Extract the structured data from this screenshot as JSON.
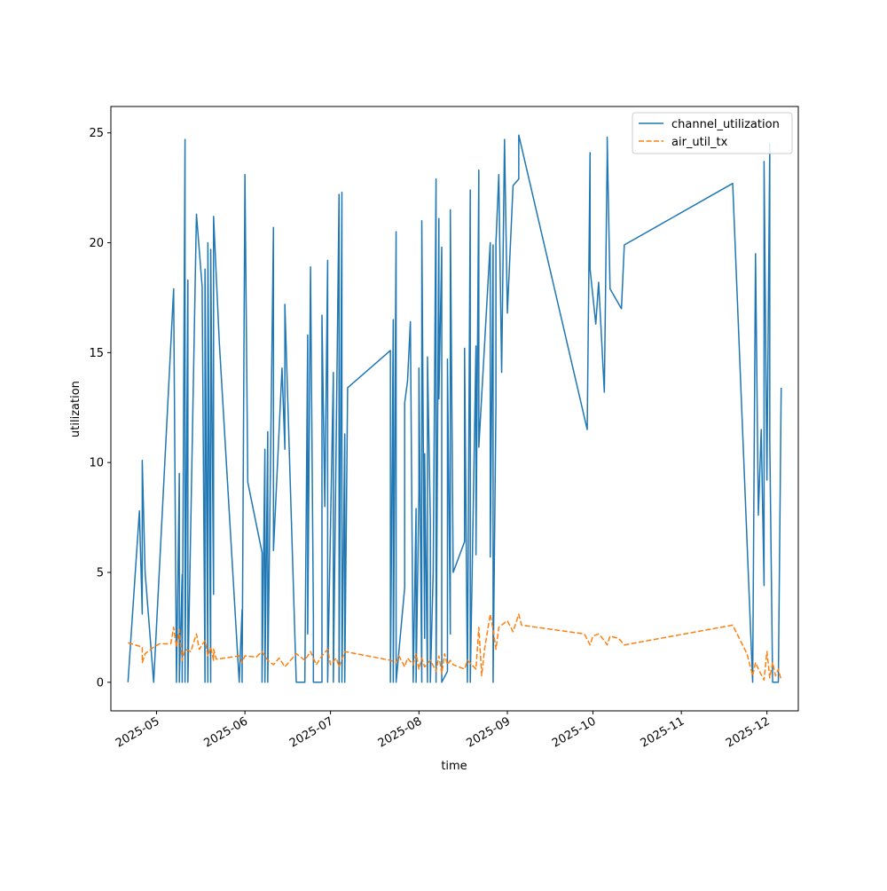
{
  "chart_data": {
    "type": "line",
    "xlabel": "time",
    "ylabel": "utilization",
    "x_range": [
      "2025-04-15",
      "2025-12-12"
    ],
    "ylim": [
      -1.3,
      26.2
    ],
    "x_ticks": [
      "2025-05-01",
      "2025-06-01",
      "2025-07-01",
      "2025-08-01",
      "2025-09-01",
      "2025-10-01",
      "2025-11-01",
      "2025-12-01"
    ],
    "x_tick_labels": [
      "2025-05",
      "2025-06",
      "2025-07",
      "2025-08",
      "2025-09",
      "2025-10",
      "2025-11",
      "2025-12"
    ],
    "y_ticks": [
      0,
      5,
      10,
      15,
      20,
      25
    ],
    "y_tick_labels": [
      "0",
      "5",
      "10",
      "15",
      "20",
      "25"
    ],
    "grid": false,
    "legend_position": "top-right",
    "series": [
      {
        "name": "channel_utilization",
        "color": "#1f77b4",
        "style": "solid",
        "points": [
          [
            "2025-04-21",
            0.0
          ],
          [
            "2025-04-25",
            7.8
          ],
          [
            "2025-04-26",
            3.1
          ],
          [
            "2025-04-26",
            10.1
          ],
          [
            "2025-04-27",
            5.0
          ],
          [
            "2025-04-30",
            0.0
          ],
          [
            "2025-05-07",
            17.9
          ],
          [
            "2025-05-08",
            0.0
          ],
          [
            "2025-05-09",
            9.5
          ],
          [
            "2025-05-09",
            0.0
          ],
          [
            "2025-05-10",
            4.9
          ],
          [
            "2025-05-10",
            0.0
          ],
          [
            "2025-05-11",
            24.7
          ],
          [
            "2025-05-11",
            0.0
          ],
          [
            "2025-05-12",
            18.3
          ],
          [
            "2025-05-12",
            0.0
          ],
          [
            "2025-05-15",
            21.3
          ],
          [
            "2025-05-17",
            18.0
          ],
          [
            "2025-05-18",
            0.0
          ],
          [
            "2025-05-18",
            18.8
          ],
          [
            "2025-05-19",
            0.0
          ],
          [
            "2025-05-19",
            20.0
          ],
          [
            "2025-05-20",
            0.0
          ],
          [
            "2025-05-20",
            19.7
          ],
          [
            "2025-05-21",
            4.0
          ],
          [
            "2025-05-21",
            21.2
          ],
          [
            "2025-05-23",
            15.5
          ],
          [
            "2025-05-30",
            0.0
          ],
          [
            "2025-05-31",
            3.3
          ],
          [
            "2025-05-31",
            0.0
          ],
          [
            "2025-06-01",
            23.1
          ],
          [
            "2025-06-02",
            9.1
          ],
          [
            "2025-06-07",
            5.9
          ],
          [
            "2025-06-07",
            0.0
          ],
          [
            "2025-06-08",
            10.6
          ],
          [
            "2025-06-08",
            0.0
          ],
          [
            "2025-06-09",
            11.4
          ],
          [
            "2025-06-09",
            0.0
          ],
          [
            "2025-06-11",
            20.7
          ],
          [
            "2025-06-11",
            6.0
          ],
          [
            "2025-06-14",
            14.3
          ],
          [
            "2025-06-15",
            10.6
          ],
          [
            "2025-06-15",
            17.2
          ],
          [
            "2025-06-19",
            0.0
          ],
          [
            "2025-06-22",
            0.0
          ],
          [
            "2025-06-23",
            15.8
          ],
          [
            "2025-06-23",
            2.2
          ],
          [
            "2025-06-24",
            18.9
          ],
          [
            "2025-06-25",
            3.0
          ],
          [
            "2025-06-25",
            0.0
          ],
          [
            "2025-06-28",
            0.0
          ],
          [
            "2025-06-28",
            16.7
          ],
          [
            "2025-06-29",
            8.0
          ],
          [
            "2025-06-30",
            19.2
          ],
          [
            "2025-06-30",
            0.0
          ],
          [
            "2025-07-02",
            14.1
          ],
          [
            "2025-07-02",
            0.0
          ],
          [
            "2025-07-04",
            22.2
          ],
          [
            "2025-07-04",
            0.0
          ],
          [
            "2025-07-05",
            22.3
          ],
          [
            "2025-07-05",
            0.0
          ],
          [
            "2025-07-06",
            11.3
          ],
          [
            "2025-07-06",
            0.0
          ],
          [
            "2025-07-07",
            13.4
          ],
          [
            "2025-07-22",
            15.1
          ],
          [
            "2025-07-22",
            0.0
          ],
          [
            "2025-07-23",
            16.5
          ],
          [
            "2025-07-23",
            0.0
          ],
          [
            "2025-07-24",
            20.5
          ],
          [
            "2025-07-24",
            0.0
          ],
          [
            "2025-07-27",
            4.3
          ],
          [
            "2025-07-27",
            12.7
          ],
          [
            "2025-07-28",
            13.7
          ],
          [
            "2025-07-29",
            16.4
          ],
          [
            "2025-07-30",
            0.0
          ],
          [
            "2025-07-31",
            7.9
          ],
          [
            "2025-07-31",
            0.0
          ],
          [
            "2025-08-01",
            8.7
          ],
          [
            "2025-08-01",
            14.3
          ],
          [
            "2025-08-02",
            0.0
          ],
          [
            "2025-08-02",
            21.0
          ],
          [
            "2025-08-03",
            2.0
          ],
          [
            "2025-08-03",
            10.4
          ],
          [
            "2025-08-04",
            0.0
          ],
          [
            "2025-08-04",
            14.8
          ],
          [
            "2025-08-05",
            7.3
          ],
          [
            "2025-08-05",
            0.0
          ],
          [
            "2025-08-06",
            5.0
          ],
          [
            "2025-08-07",
            22.9
          ],
          [
            "2025-08-07",
            0.0
          ],
          [
            "2025-08-08",
            21.1
          ],
          [
            "2025-08-08",
            12.9
          ],
          [
            "2025-08-09",
            19.8
          ],
          [
            "2025-08-09",
            0.0
          ],
          [
            "2025-08-11",
            0.5
          ],
          [
            "2025-08-11",
            14.7
          ],
          [
            "2025-08-12",
            2.2
          ],
          [
            "2025-08-12",
            21.5
          ],
          [
            "2025-08-13",
            5.0
          ],
          [
            "2025-08-17",
            6.4
          ],
          [
            "2025-08-17",
            15.2
          ],
          [
            "2025-08-18",
            0.0
          ],
          [
            "2025-08-19",
            22.4
          ],
          [
            "2025-08-19",
            0.0
          ],
          [
            "2025-08-21",
            15.3
          ],
          [
            "2025-08-21",
            5.8
          ],
          [
            "2025-08-22",
            23.3
          ],
          [
            "2025-08-22",
            10.7
          ],
          [
            "2025-08-26",
            20.0
          ],
          [
            "2025-08-26",
            5.7
          ],
          [
            "2025-08-27",
            19.9
          ],
          [
            "2025-08-27",
            0.0
          ],
          [
            "2025-08-28",
            12.6
          ],
          [
            "2025-08-28",
            20.0
          ],
          [
            "2025-08-29",
            23.1
          ],
          [
            "2025-08-30",
            14.1
          ],
          [
            "2025-08-31",
            24.7
          ],
          [
            "2025-09-01",
            16.8
          ],
          [
            "2025-09-03",
            22.6
          ],
          [
            "2025-09-05",
            22.9
          ],
          [
            "2025-09-05",
            24.9
          ],
          [
            "2025-09-29",
            11.5
          ],
          [
            "2025-09-30",
            24.1
          ],
          [
            "2025-09-30",
            18.8
          ],
          [
            "2025-10-02",
            16.3
          ],
          [
            "2025-10-03",
            18.2
          ],
          [
            "2025-10-05",
            13.2
          ],
          [
            "2025-10-06",
            24.0
          ],
          [
            "2025-10-06",
            24.8
          ],
          [
            "2025-10-07",
            17.9
          ],
          [
            "2025-10-11",
            17.0
          ],
          [
            "2025-10-12",
            19.9
          ],
          [
            "2025-11-19",
            22.7
          ],
          [
            "2025-11-26",
            0.0
          ],
          [
            "2025-11-27",
            19.5
          ],
          [
            "2025-11-28",
            7.6
          ],
          [
            "2025-11-29",
            11.5
          ],
          [
            "2025-11-30",
            4.4
          ],
          [
            "2025-11-30",
            23.7
          ],
          [
            "2025-12-01",
            9.2
          ],
          [
            "2025-12-02",
            24.5
          ],
          [
            "2025-12-02",
            11.0
          ],
          [
            "2025-12-03",
            0.0
          ],
          [
            "2025-12-05",
            0.0
          ],
          [
            "2025-12-06",
            13.4
          ]
        ]
      },
      {
        "name": "air_util_tx",
        "color": "#ff7f0e",
        "style": "dashed",
        "points": [
          [
            "2025-04-21",
            1.8
          ],
          [
            "2025-04-26",
            1.6
          ],
          [
            "2025-04-26",
            0.9
          ],
          [
            "2025-04-27",
            1.3
          ],
          [
            "2025-04-30",
            1.6
          ],
          [
            "2025-05-02",
            1.75
          ],
          [
            "2025-05-06",
            1.75
          ],
          [
            "2025-05-07",
            2.5
          ],
          [
            "2025-05-08",
            1.6
          ],
          [
            "2025-05-09",
            2.4
          ],
          [
            "2025-05-10",
            1.0
          ],
          [
            "2025-05-11",
            1.5
          ],
          [
            "2025-05-13",
            1.4
          ],
          [
            "2025-05-15",
            2.2
          ],
          [
            "2025-05-16",
            1.5
          ],
          [
            "2025-05-18",
            1.9
          ],
          [
            "2025-05-19",
            1.2
          ],
          [
            "2025-05-20",
            1.6
          ],
          [
            "2025-05-21",
            1.0
          ],
          [
            "2025-05-21",
            1.5
          ],
          [
            "2025-05-22",
            1.05
          ],
          [
            "2025-05-30",
            1.2
          ],
          [
            "2025-05-31",
            0.9
          ],
          [
            "2025-06-01",
            1.2
          ],
          [
            "2025-06-05",
            1.15
          ],
          [
            "2025-06-07",
            1.4
          ],
          [
            "2025-06-09",
            1.0
          ],
          [
            "2025-06-11",
            0.8
          ],
          [
            "2025-06-13",
            1.1
          ],
          [
            "2025-06-15",
            0.7
          ],
          [
            "2025-06-19",
            1.3
          ],
          [
            "2025-06-22",
            1.0
          ],
          [
            "2025-06-24",
            1.4
          ],
          [
            "2025-06-26",
            0.8
          ],
          [
            "2025-06-28",
            1.2
          ],
          [
            "2025-06-30",
            1.5
          ],
          [
            "2025-07-01",
            0.8
          ],
          [
            "2025-07-03",
            1.1
          ],
          [
            "2025-07-04",
            0.7
          ],
          [
            "2025-07-06",
            1.4
          ],
          [
            "2025-07-22",
            1.0
          ],
          [
            "2025-07-24",
            0.9
          ],
          [
            "2025-07-25",
            1.2
          ],
          [
            "2025-07-27",
            0.7
          ],
          [
            "2025-07-28",
            1.1
          ],
          [
            "2025-07-30",
            0.8
          ],
          [
            "2025-07-31",
            1.3
          ],
          [
            "2025-08-01",
            0.6
          ],
          [
            "2025-08-02",
            1.1
          ],
          [
            "2025-08-03",
            0.7
          ],
          [
            "2025-08-05",
            1.0
          ],
          [
            "2025-08-07",
            0.5
          ],
          [
            "2025-08-08",
            1.2
          ],
          [
            "2025-08-09",
            0.4
          ],
          [
            "2025-08-10",
            1.3
          ],
          [
            "2025-08-11",
            0.8
          ],
          [
            "2025-08-12",
            1.0
          ],
          [
            "2025-08-13",
            0.8
          ],
          [
            "2025-08-17",
            0.6
          ],
          [
            "2025-08-18",
            1.0
          ],
          [
            "2025-08-21",
            0.6
          ],
          [
            "2025-08-22",
            2.5
          ],
          [
            "2025-08-23",
            0.3
          ],
          [
            "2025-08-24",
            1.5
          ],
          [
            "2025-08-26",
            3.1
          ],
          [
            "2025-08-27",
            2.4
          ],
          [
            "2025-08-28",
            1.5
          ],
          [
            "2025-08-29",
            2.5
          ],
          [
            "2025-09-01",
            2.8
          ],
          [
            "2025-09-03",
            2.3
          ],
          [
            "2025-09-05",
            3.1
          ],
          [
            "2025-09-06",
            2.6
          ],
          [
            "2025-09-28",
            2.2
          ],
          [
            "2025-09-30",
            1.7
          ],
          [
            "2025-10-01",
            2.1
          ],
          [
            "2025-10-03",
            2.2
          ],
          [
            "2025-10-05",
            1.9
          ],
          [
            "2025-10-06",
            1.7
          ],
          [
            "2025-10-07",
            2.1
          ],
          [
            "2025-10-10",
            2.0
          ],
          [
            "2025-10-12",
            1.7
          ],
          [
            "2025-11-19",
            2.6
          ],
          [
            "2025-11-24",
            1.3
          ],
          [
            "2025-11-26",
            0.3
          ],
          [
            "2025-11-27",
            0.9
          ],
          [
            "2025-11-28",
            0.6
          ],
          [
            "2025-11-30",
            0.1
          ],
          [
            "2025-12-01",
            1.4
          ],
          [
            "2025-12-02",
            0.2
          ],
          [
            "2025-12-03",
            0.9
          ],
          [
            "2025-12-04",
            0.3
          ],
          [
            "2025-12-05",
            0.6
          ],
          [
            "2025-12-06",
            0.1
          ]
        ]
      }
    ]
  }
}
